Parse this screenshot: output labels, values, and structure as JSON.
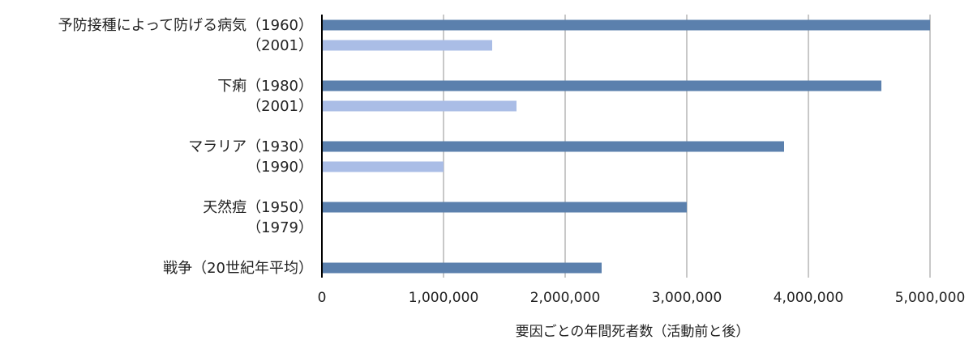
{
  "chart_data": {
    "type": "bar",
    "orientation": "horizontal",
    "xlabel": "要因ごとの年間死者数（活動前と後）",
    "ylabel": "",
    "xlim": [
      0,
      5000000
    ],
    "x_ticks": [
      0,
      1000000,
      2000000,
      3000000,
      4000000,
      5000000
    ],
    "x_tick_labels": [
      "0",
      "1,000,000",
      "2,000,000",
      "3,000,000",
      "4,000,000",
      "5,000,000"
    ],
    "grid": "vertical",
    "legend": "none",
    "colors": {
      "before": "#5b80ad",
      "after": "#aabde6",
      "grid": "#c8c8c8",
      "axis": "#000000"
    },
    "groups": [
      {
        "bars": [
          {
            "label": "予防接種によって防げる病気（1960）",
            "value": 5000000,
            "kind": "before"
          },
          {
            "label": "（2001）",
            "value": 1400000,
            "kind": "after"
          }
        ]
      },
      {
        "bars": [
          {
            "label": "下痢（1980）",
            "value": 4600000,
            "kind": "before"
          },
          {
            "label": "（2001）",
            "value": 1600000,
            "kind": "after"
          }
        ]
      },
      {
        "bars": [
          {
            "label": "マラリア（1930）",
            "value": 3800000,
            "kind": "before"
          },
          {
            "label": "（1990）",
            "value": 1000000,
            "kind": "after"
          }
        ]
      },
      {
        "bars": [
          {
            "label": "天然痘（1950）",
            "value": 3000000,
            "kind": "before"
          },
          {
            "label": "（1979）",
            "value": 0,
            "kind": "after"
          }
        ]
      },
      {
        "bars": [
          {
            "label": "戦争（20世紀年平均）",
            "value": 2300000,
            "kind": "before"
          }
        ]
      }
    ]
  }
}
